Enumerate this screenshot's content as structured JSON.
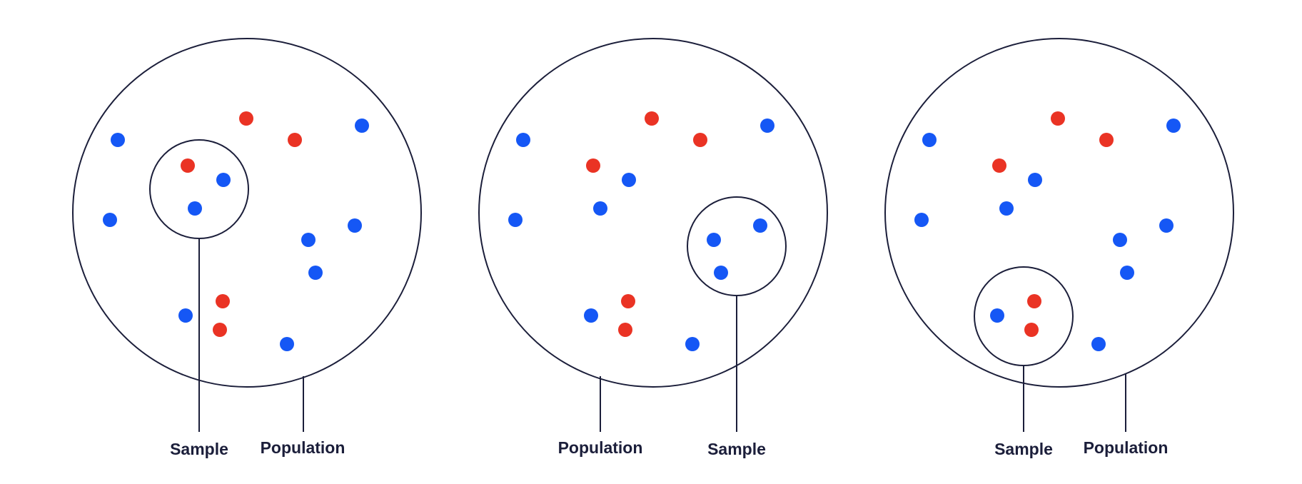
{
  "colors": {
    "outline": "#1b1e3a",
    "blue": "#1557f5",
    "red": "#ea3324",
    "text": "#1b1e3a"
  },
  "panels": [
    {
      "labels": {
        "sample": "Sample",
        "population": "Population"
      }
    },
    {
      "labels": {
        "sample": "Sample",
        "population": "Population"
      }
    },
    {
      "labels": {
        "sample": "Sample",
        "population": "Population"
      }
    }
  ]
}
